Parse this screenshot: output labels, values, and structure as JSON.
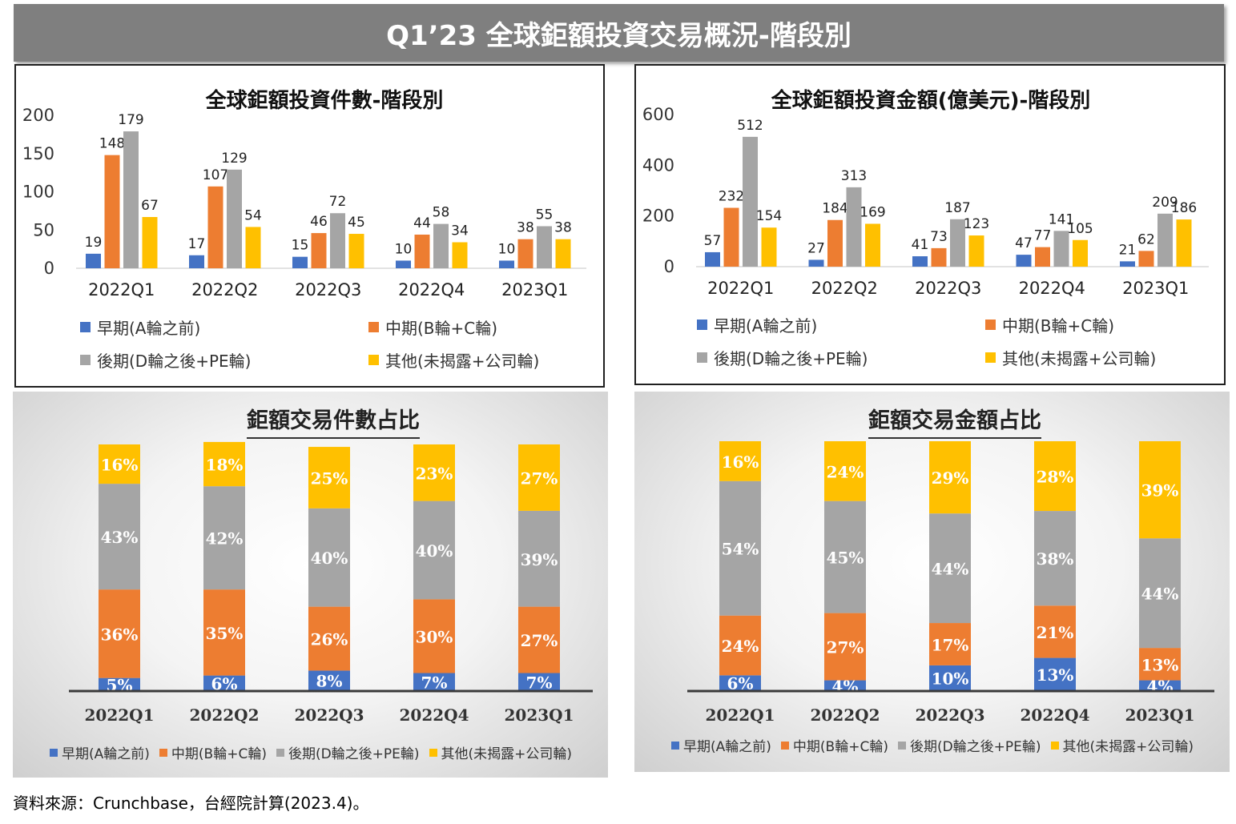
{
  "header": {
    "title": "Q1’23 全球鉅額投資交易概況-階段別"
  },
  "colors": {
    "early": "#4472c4",
    "mid": "#ed7d31",
    "late": "#a5a5a5",
    "other": "#ffc000"
  },
  "legend": [
    "早期(A輪之前)",
    "中期(B輪+C輪)",
    "後期(D輪之後+PE輪)",
    "其他(未揭露+公司輪)"
  ],
  "source": "資料來源：Crunchbase，台經院計算(2023.4)。",
  "chart_data": [
    {
      "type": "bar",
      "title": "全球鉅額投資件數-階段別",
      "categories": [
        "2022Q1",
        "2022Q2",
        "2022Q3",
        "2022Q4",
        "2023Q1"
      ],
      "ylim": [
        0,
        200
      ],
      "yticks": [
        "0",
        "50",
        "100",
        "150",
        "200"
      ],
      "grid": false,
      "legend_position": "bottom",
      "series": [
        {
          "name": "早期(A輪之前)",
          "values": [
            19,
            17,
            15,
            10,
            10
          ]
        },
        {
          "name": "中期(B輪+C輪)",
          "values": [
            148,
            107,
            46,
            44,
            38
          ]
        },
        {
          "name": "後期(D輪之後+PE輪)",
          "values": [
            179,
            129,
            72,
            58,
            55
          ]
        },
        {
          "name": "其他(未揭露+公司輪)",
          "values": [
            67,
            54,
            45,
            34,
            38
          ]
        }
      ]
    },
    {
      "type": "bar",
      "title": "全球鉅額投資金額(億美元)-階段別",
      "categories": [
        "2022Q1",
        "2022Q2",
        "2022Q3",
        "2022Q4",
        "2023Q1"
      ],
      "ylim": [
        0,
        600
      ],
      "yticks": [
        "0",
        "200",
        "400",
        "600"
      ],
      "grid": false,
      "legend_position": "bottom",
      "series": [
        {
          "name": "早期(A輪之前)",
          "values": [
            57,
            27,
            41,
            47,
            21
          ]
        },
        {
          "name": "中期(B輪+C輪)",
          "values": [
            232,
            184,
            73,
            77,
            62
          ]
        },
        {
          "name": "後期(D輪之後+PE輪)",
          "values": [
            512,
            313,
            187,
            141,
            209
          ]
        },
        {
          "name": "其他(未揭露+公司輪)",
          "values": [
            154,
            169,
            123,
            105,
            186
          ]
        }
      ]
    },
    {
      "type": "bar",
      "stacked": true,
      "title": "鉅額交易件數占比",
      "categories": [
        "2022Q1",
        "2022Q2",
        "2022Q3",
        "2022Q4",
        "2023Q1"
      ],
      "ylim": [
        0,
        100
      ],
      "legend_position": "bottom",
      "series": [
        {
          "name": "早期(A輪之前)",
          "values": [
            5,
            6,
            8,
            7,
            7
          ]
        },
        {
          "name": "中期(B輪+C輪)",
          "values": [
            36,
            35,
            26,
            30,
            27
          ]
        },
        {
          "name": "後期(D輪之後+PE輪)",
          "values": [
            43,
            42,
            40,
            40,
            39
          ]
        },
        {
          "name": "其他(未揭露+公司輪)",
          "values": [
            16,
            18,
            25,
            23,
            27
          ]
        }
      ]
    },
    {
      "type": "bar",
      "stacked": true,
      "title": "鉅額交易金額占比",
      "categories": [
        "2022Q1",
        "2022Q2",
        "2022Q3",
        "2022Q4",
        "2023Q1"
      ],
      "ylim": [
        0,
        100
      ],
      "legend_position": "bottom",
      "series": [
        {
          "name": "早期(A輪之前)",
          "values": [
            6,
            4,
            10,
            13,
            4
          ]
        },
        {
          "name": "中期(B輪+C輪)",
          "values": [
            24,
            27,
            17,
            21,
            13
          ]
        },
        {
          "name": "後期(D輪之後+PE輪)",
          "values": [
            54,
            45,
            44,
            38,
            44
          ]
        },
        {
          "name": "其他(未揭露+公司輪)",
          "values": [
            16,
            24,
            29,
            28,
            39
          ]
        }
      ]
    }
  ]
}
